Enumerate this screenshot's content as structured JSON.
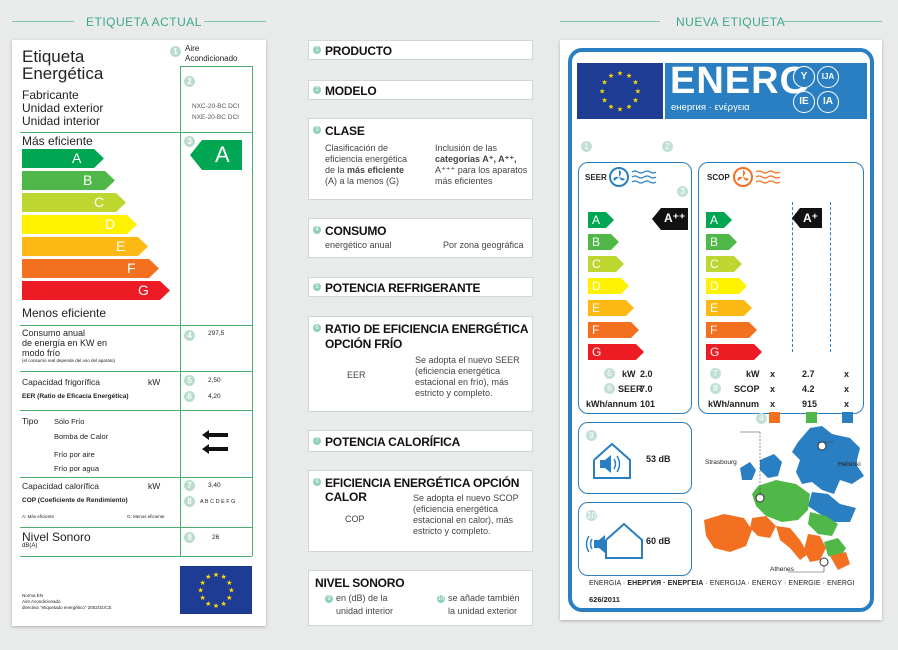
{
  "headers": {
    "left": "ETIQUETA ACTUAL",
    "right": "NUEVA ETIQUETA"
  },
  "old": {
    "title1": "Etiqueta",
    "title2": "Energética",
    "n1": "1",
    "product": "Aire\nAcondicionado",
    "product_l1": "Aire",
    "product_l2": "Acondicionado",
    "n2": "2",
    "maker1": "Fabricante",
    "maker2": "Unidad exterior",
    "maker3": "Unidad interior",
    "model1": "NXC-20-BC DCI",
    "model2": "NXE-20-BC DCI",
    "more": "Más eficiente",
    "less": "Menos eficiente",
    "n3": "3",
    "classes": [
      "A",
      "B",
      "C",
      "D",
      "E",
      "F",
      "G"
    ],
    "class_value": "A",
    "consumo1": "Consumo anual",
    "consumo2": "de energía en KW en",
    "consumo3": "modo frío",
    "consumo_note": "(el consumo real depende del uso del aparato)",
    "n4": "4",
    "consumo_val": "297,5",
    "cap_frig": "Capacidad frigorífica",
    "kw": "kW",
    "n5": "5",
    "cap_frig_val": "2,50",
    "eer": "EER (Ratio de Eficacia Energética)",
    "n6": "6",
    "eer_val": "4,20",
    "tipo": "Tipo",
    "tipo1": "Sólo Frío",
    "tipo2": "Bomba de Calor",
    "tipo3": "Frío por aire",
    "tipo4": "Frío por agua",
    "cap_cal": "Capacidad calorífica",
    "n7": "7",
    "cap_cal_val": "3,40",
    "cop": "COP (Coeficiente de Rendimiento)",
    "n8": "8",
    "cop_scale": "A B C D E F G",
    "a_mas": "A: Más eficiente",
    "g_menos": "G: Menos eficiente",
    "nivel": "Nivel Sonoro",
    "dba": "dB(A)",
    "n9": "9",
    "nivel_val": "26",
    "norma1": "Norma EN",
    "norma2": "Aire Acondicionado",
    "norma3": "directiva \"etiquetado energético\" 2002/31/CE"
  },
  "middle": {
    "producto": "PRODUCTO",
    "modelo": "MODELO",
    "clase": "CLASE",
    "clase_l1": "Clasificación de",
    "clase_l2": "eficiencia energética",
    "clase_l3a": "de la ",
    "clase_l3b": "más eficiente",
    "clase_l4": "(A) a la menos (G)",
    "clase_r1": "Inclusión de las",
    "clase_r2": "categorías A⁺, A⁺⁺,",
    "clase_r3": "A⁺⁺⁺ para los aparatos",
    "clase_r4": "más eficientes",
    "consumo": "CONSUMO",
    "consumo_s": "energético anual",
    "consumo_r": "Por zona geográfica",
    "potencia_ref": "POTENCIA REFRIGERANTE",
    "ratio1": "RATIO DE EFICIENCIA ENERGÉTICA",
    "ratio2": "OPCIÓN FRÍO",
    "eer": "EER",
    "eer_r1": "Se adopta el nuevo SEER",
    "eer_r2": "(eficiencia energética",
    "eer_r3": "estacional en frío), más",
    "eer_r4": "estricto y completo.",
    "potencia_cal": "POTENCIA CALORÍFICA",
    "efic_calor": "EFICIENCIA ENERGÉTICA OPCIÓN CALOR",
    "cop": "COP",
    "cop_r1": "Se adopta el nuevo SCOP",
    "cop_r2": "(eficiencia energética",
    "cop_r3": "estacional en calor), más",
    "cop_r4": "estricto y completo.",
    "nivel": "NIVEL SONORO",
    "nivel_l1": "en (dB) de la",
    "nivel_l2": "unidad interior",
    "nivel_r1": "se añade también",
    "nivel_r2": "la unidad exterior",
    "nums": [
      "1",
      "2",
      "3",
      "4",
      "5",
      "6",
      "7",
      "8",
      "9",
      "10"
    ]
  },
  "new": {
    "energ": "ENERG",
    "energ_sub": "енергия · ενέργεια",
    "lang": [
      "Y",
      "IJA",
      "IE",
      "IA"
    ],
    "seer": "SEER",
    "scop": "SCOP",
    "classes": [
      "A",
      "B",
      "C",
      "D",
      "E",
      "F",
      "G"
    ],
    "seer_class": "A⁺⁺",
    "scop_class": "A⁺",
    "kw": "kW",
    "seer_kw_val": "2.0",
    "seer_label": "SEER",
    "seer_val": "7.0",
    "kwh": "kWh/annum",
    "seer_kwh_val": "101",
    "scop_kw": "kW",
    "x": "x",
    "scop_kw_val": "2.7",
    "scop_label": "SCOP",
    "scop_val": "4.2",
    "scop_kwh": "kWh/annum",
    "scop_kwh_val": "915",
    "db_in": "53 dB",
    "db_out": "60 dB",
    "strasbourg": "Strasbourg",
    "helsinki": "Helsinki",
    "athenes": "Athenes",
    "footer_a": "ENERGIA · ",
    "footer_b": "ЕНЕРГИЯ · ΕΝΕΡΓΕΙΑ",
    "footer_c": " · ENERGIJA · ENERGY · ENERGIE · ENERGI",
    "reg": "626/2011",
    "n1": "1",
    "n2": "2",
    "n3": "3",
    "n4": "4",
    "n5": "5",
    "n6": "6",
    "n7": "7",
    "n8": "8",
    "n9": "9",
    "n10": "10"
  },
  "colors": {
    "A": "#00a651",
    "B": "#50b848",
    "C": "#bed630",
    "D": "#fff200",
    "E": "#fdb913",
    "F": "#f37021",
    "G": "#ed1c24",
    "eu_blue": "#1f3c94",
    "new_blue": "#2a7fc2",
    "accent": "#3aa88c"
  }
}
